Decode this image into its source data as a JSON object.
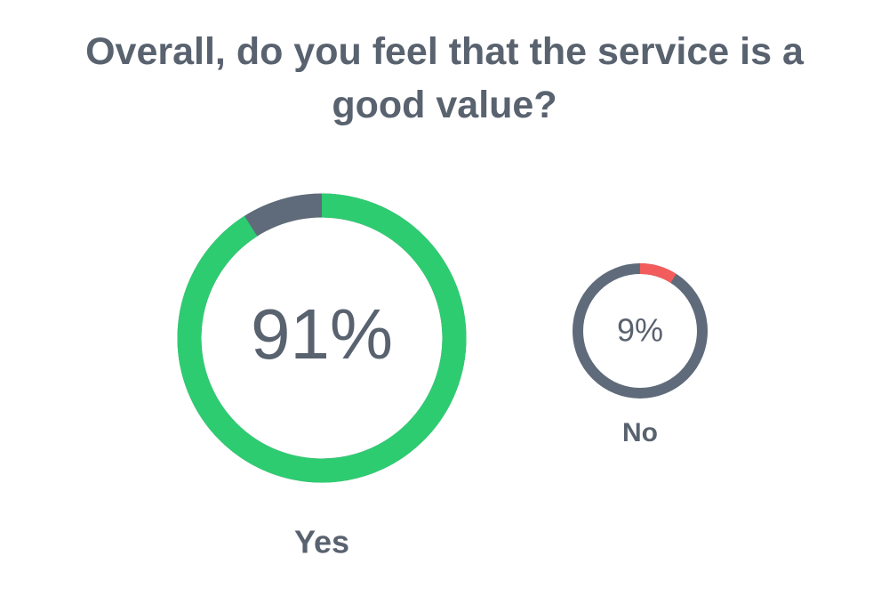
{
  "chart_data": {
    "type": "donut",
    "title": "Overall, do you feel that the service is a good value?",
    "categories": [
      "Yes",
      "No"
    ],
    "values": [
      91,
      9
    ],
    "value_labels": [
      "91%",
      "9%"
    ],
    "colors": [
      "#2ecc71",
      "#f25c5c"
    ],
    "track_color": "#5f6b7a"
  }
}
